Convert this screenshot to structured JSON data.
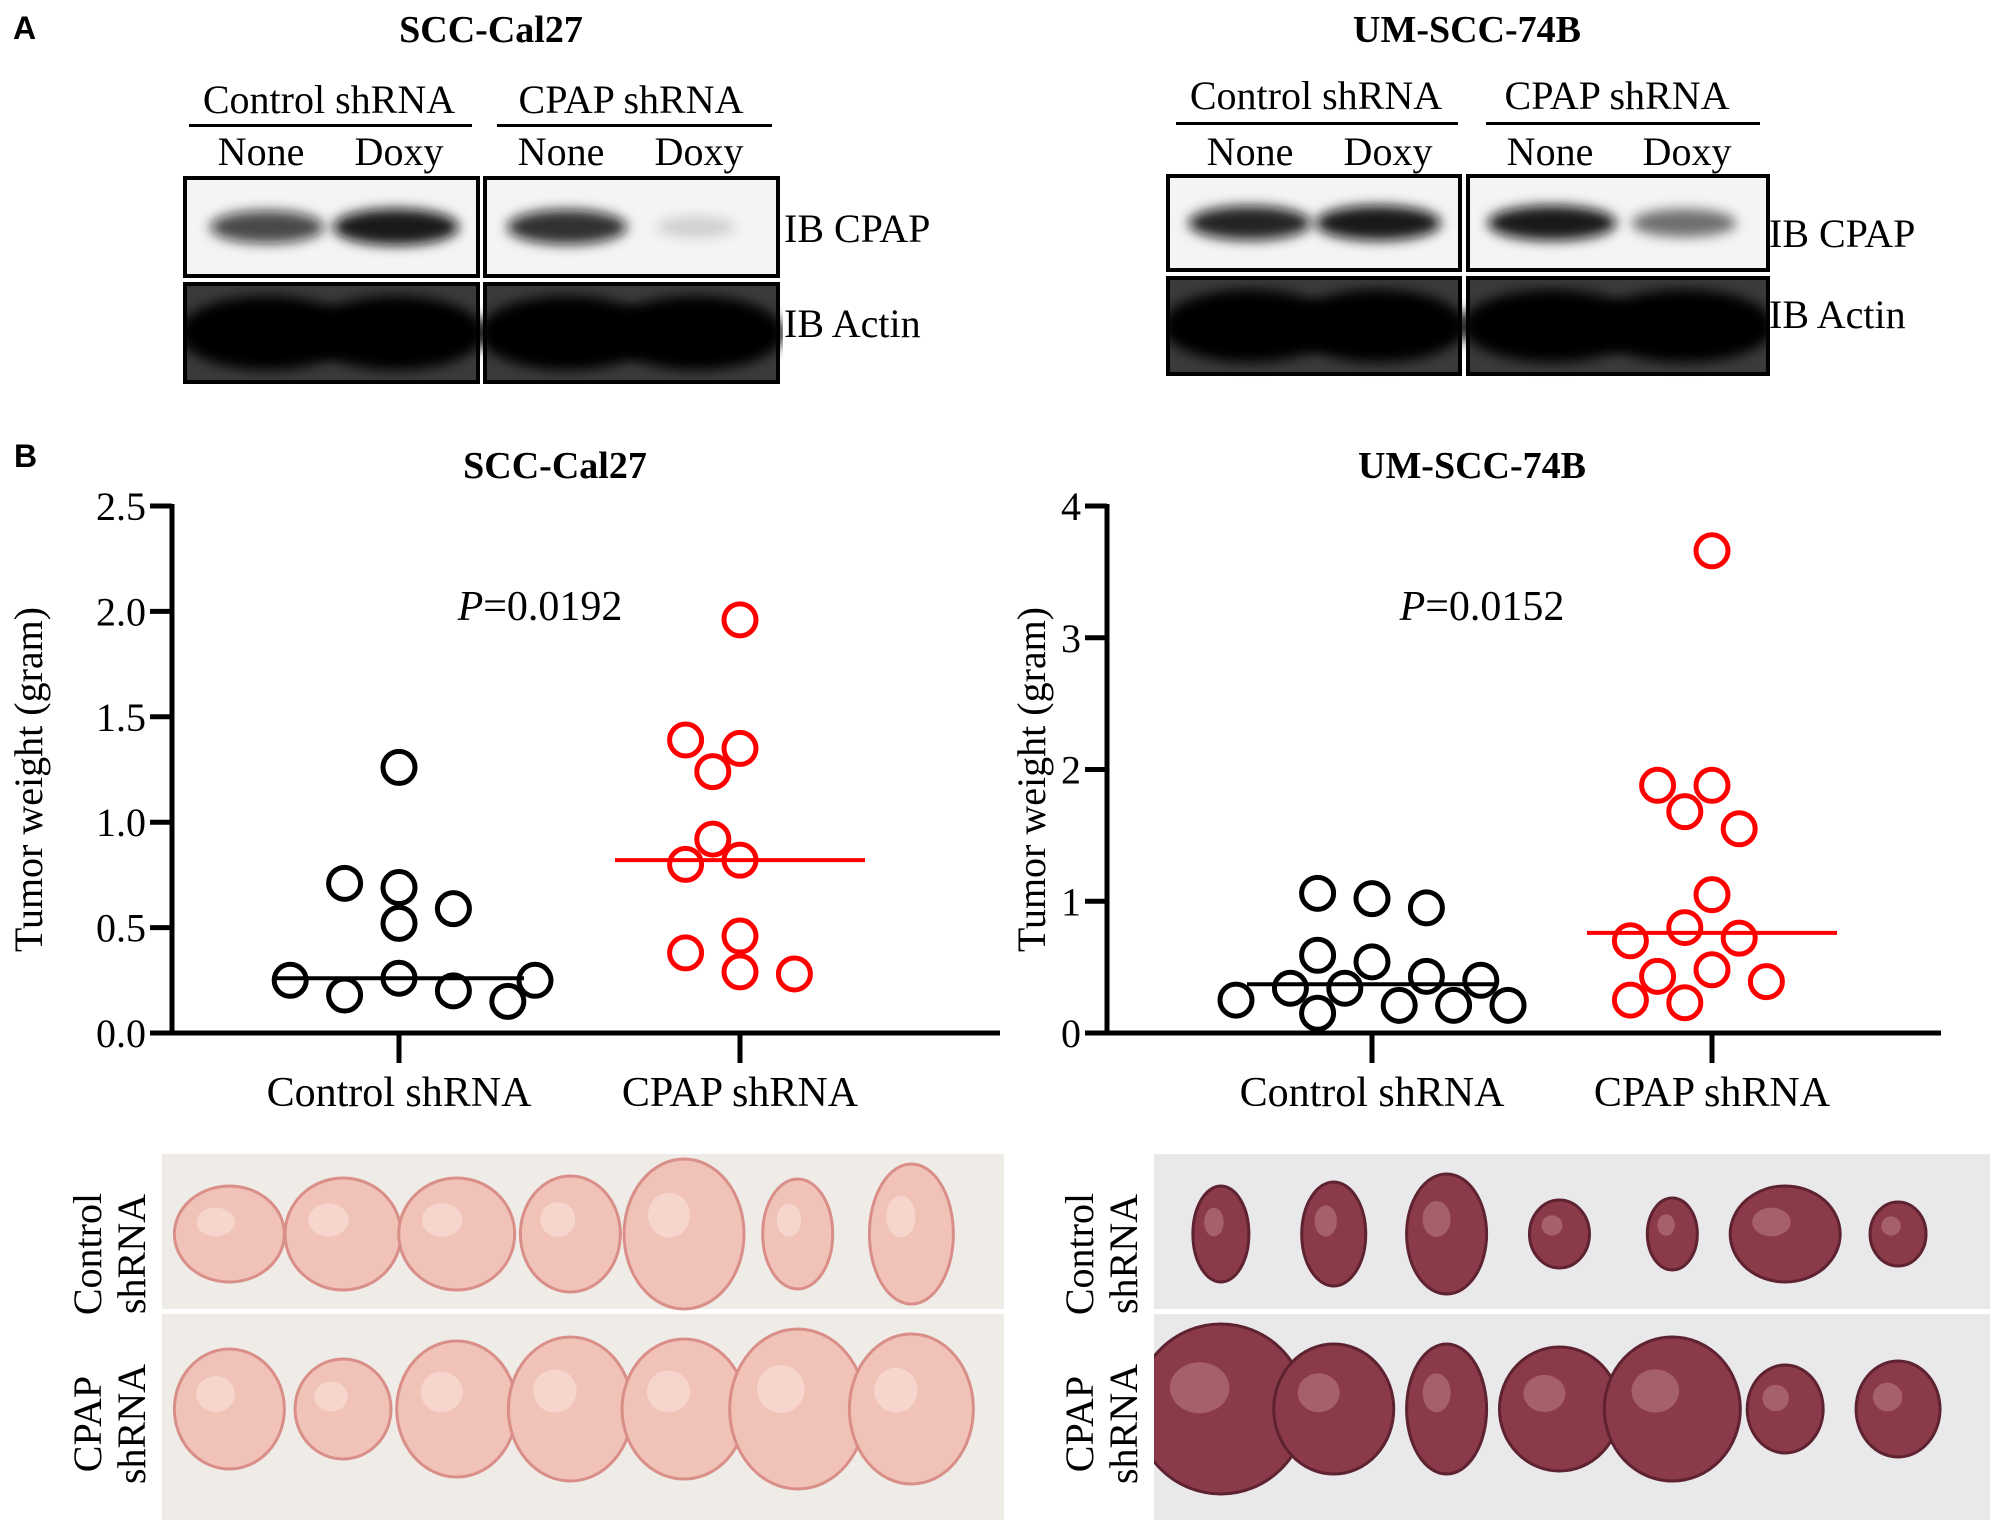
{
  "panel_a": {
    "letter": "A",
    "blots": [
      {
        "title": "SCC-Cal27",
        "groups": [
          "Control shRNA",
          "CPAP shRNA"
        ],
        "lanes": [
          "None",
          "Doxy",
          "None",
          "Doxy"
        ],
        "rows": [
          "IB CPAP",
          "IB Actin"
        ],
        "cpap_intensity": [
          0.75,
          0.95,
          0.85,
          0.15
        ],
        "actin_intensity": [
          1,
          1,
          1,
          1
        ]
      },
      {
        "title": "UM-SCC-74B",
        "groups": [
          "Control shRNA",
          "CPAP shRNA"
        ],
        "lanes": [
          "None",
          "Doxy",
          "None",
          "Doxy"
        ],
        "rows": [
          "IB CPAP",
          "IB Actin"
        ],
        "cpap_intensity": [
          0.9,
          0.95,
          0.95,
          0.55
        ],
        "actin_intensity": [
          1,
          1,
          1,
          1
        ]
      }
    ]
  },
  "panel_b": {
    "letter": "B",
    "photo_labels": [
      [
        "Control",
        "shRNA"
      ],
      [
        "CPAP",
        "shRNA"
      ]
    ],
    "photo_colors": {
      "left": "#f0c2b8",
      "right": "#8a3a48"
    }
  },
  "chart_data": [
    {
      "type": "scatter",
      "title": "SCC-Cal27",
      "ylabel": "Tumor weight (gram)",
      "xlabel": "",
      "categories": [
        "Control shRNA",
        "CPAP shRNA"
      ],
      "ylim": [
        0,
        2.5
      ],
      "yticks": [
        "0.0",
        "0.5",
        "1.0",
        "1.5",
        "2.0",
        "2.5"
      ],
      "annotation": {
        "italic": "P",
        "text": "=0.0192"
      },
      "grid": false,
      "series": [
        {
          "category": "Control shRNA",
          "color": "#000000",
          "median": 0.26,
          "values": [
            1.26,
            0.69,
            0.71,
            0.52,
            0.59,
            0.26,
            0.18,
            0.2,
            0.25,
            0.15,
            0.25
          ]
        },
        {
          "category": "CPAP shRNA",
          "color": "#ff0000",
          "median": 0.82,
          "values": [
            1.96,
            1.35,
            1.39,
            1.24,
            0.82,
            0.92,
            0.8,
            0.46,
            0.38,
            0.29,
            0.28
          ]
        }
      ]
    },
    {
      "type": "scatter",
      "title": "UM-SCC-74B",
      "ylabel": "Tumor weight (gram)",
      "xlabel": "",
      "categories": [
        "Control shRNA",
        "CPAP shRNA"
      ],
      "ylim": [
        0,
        4
      ],
      "yticks": [
        "0",
        "1",
        "2",
        "3",
        "4"
      ],
      "annotation": {
        "italic": "P",
        "text": "=0.0152"
      },
      "grid": false,
      "series": [
        {
          "category": "Control shRNA",
          "color": "#000000",
          "median": 0.37,
          "values": [
            1.02,
            1.06,
            0.95,
            0.54,
            0.59,
            0.43,
            0.34,
            0.34,
            0.4,
            0.21,
            0.21,
            0.15,
            0.25,
            0.21
          ]
        },
        {
          "category": "CPAP shRNA",
          "color": "#ff0000",
          "median": 0.76,
          "values": [
            3.66,
            1.88,
            1.88,
            1.68,
            1.55,
            1.05,
            0.8,
            0.72,
            0.7,
            0.48,
            0.43,
            0.39,
            0.23,
            0.25
          ]
        }
      ]
    }
  ]
}
